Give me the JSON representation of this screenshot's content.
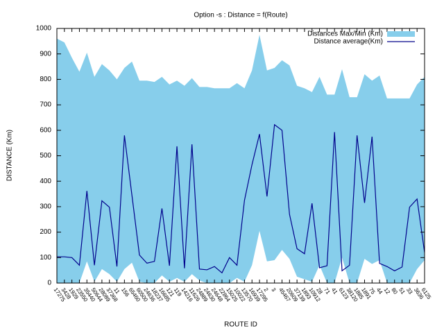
{
  "chart_data": {
    "type": "line",
    "title": "Option -s : Distance = f(Route)",
    "xlabel": "ROUTE ID",
    "ylabel": "DISTANCE (Km)",
    "categories": [
      "17275",
      "3428",
      "1929",
      "23550",
      "35440",
      "50644",
      "28089",
      "37368",
      "11",
      "156",
      "65460",
      "60500",
      "24636",
      "18237",
      "16685",
      "121",
      "119",
      "14216",
      "11626",
      "24889",
      "24630",
      "24648",
      "22864",
      "15025",
      "10022",
      "13570",
      "16939",
      "17295",
      "2",
      "3",
      "45467",
      "20609",
      "37139",
      "1893",
      "10912",
      "28",
      "71",
      "41",
      "6123",
      "38120",
      "1885",
      "1891",
      "75",
      "44",
      "12",
      "80",
      "51",
      "33",
      "3636",
      "6125"
    ],
    "ylim": [
      0,
      1000
    ],
    "yticks": [
      0,
      100,
      200,
      300,
      400,
      500,
      600,
      700,
      800,
      900,
      1000
    ],
    "legend": "top-right",
    "series": [
      {
        "name": "Distances Max/Min (Km)",
        "color": "#87ceeb",
        "max": [
          960,
          945,
          885,
          830,
          905,
          810,
          860,
          835,
          800,
          845,
          870,
          795,
          795,
          790,
          810,
          780,
          795,
          775,
          805,
          770,
          770,
          765,
          765,
          765,
          785,
          765,
          835,
          975,
          835,
          845,
          875,
          855,
          775,
          765,
          750,
          810,
          740,
          740,
          840,
          730,
          730,
          820,
          795,
          815,
          725,
          725,
          725,
          725,
          780,
          810
        ],
        "min": [
          0,
          0,
          0,
          0,
          85,
          5,
          55,
          35,
          5,
          55,
          80,
          5,
          0,
          0,
          30,
          5,
          20,
          5,
          35,
          10,
          0,
          0,
          0,
          0,
          20,
          5,
          70,
          205,
          85,
          90,
          130,
          95,
          25,
          15,
          5,
          70,
          0,
          0,
          100,
          0,
          0,
          95,
          75,
          90,
          0,
          0,
          0,
          0,
          55,
          90
        ]
      },
      {
        "name": "Distance average(Km)",
        "color": "#00008b",
        "values": [
          103,
          103,
          100,
          70,
          362,
          70,
          323,
          298,
          65,
          580,
          345,
          110,
          78,
          85,
          293,
          68,
          537,
          58,
          545,
          55,
          52,
          65,
          40,
          100,
          70,
          325,
          465,
          585,
          340,
          622,
          600,
          270,
          135,
          115,
          313,
          60,
          68,
          593,
          48,
          70,
          580,
          315,
          575,
          77,
          65,
          48,
          63,
          298,
          330,
          120
        ]
      }
    ]
  }
}
